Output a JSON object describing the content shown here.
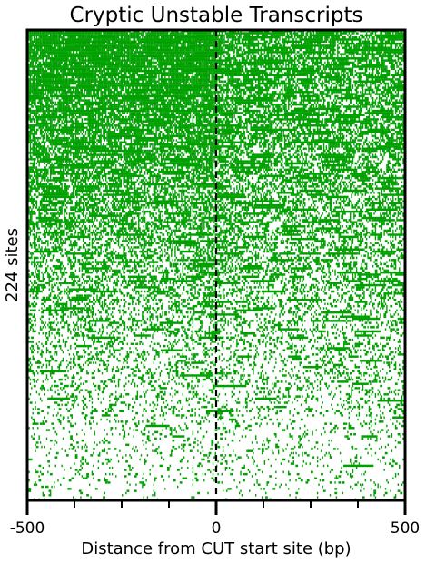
{
  "chart_data": {
    "type": "heatmap",
    "title": "Cryptic Unstable Transcripts",
    "xlabel": "Distance from CUT start site (bp)",
    "ylabel": "224 sites",
    "xlim": [
      -500,
      500
    ],
    "x_ticks": [
      -500,
      0,
      500
    ],
    "x_tick_labels": [
      "-500",
      "0",
      "500"
    ],
    "x_minor_ticks": [
      -375,
      -250,
      -125,
      125,
      250,
      375
    ],
    "rows": 224,
    "marker_line": {
      "x": 0,
      "style": "dashed"
    },
    "color": "#00a000",
    "background": "#ffffff",
    "density_description": "rows sorted by signal density; densest near top, upstream (negative) side heavier in upper rows"
  }
}
